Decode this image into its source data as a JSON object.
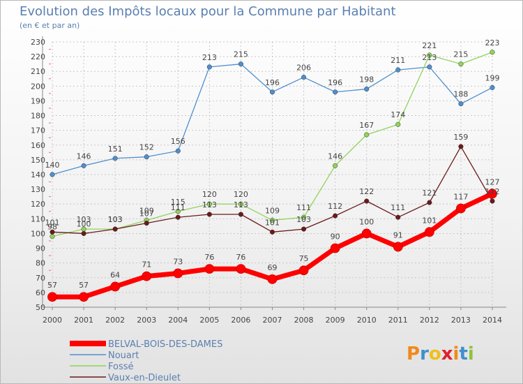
{
  "chart_data": {
    "type": "line",
    "title": "Evolution des Impôts locaux pour la Commune par Habitant",
    "subtitle": "(en € et par an)",
    "xlabel": "",
    "ylabel": "",
    "x": [
      "2000",
      "2001",
      "2002",
      "2003",
      "2004",
      "2005",
      "2006",
      "2007",
      "2008",
      "2009",
      "2010",
      "2011",
      "2012",
      "2013",
      "2014"
    ],
    "ylim": [
      50,
      230
    ],
    "yticks": [
      50,
      60,
      70,
      80,
      90,
      100,
      110,
      120,
      130,
      140,
      150,
      160,
      170,
      180,
      190,
      200,
      210,
      220,
      230
    ],
    "grid": true,
    "legend_position": "bottom-left",
    "series": [
      {
        "name": "Nouart",
        "color": "#4f8fcf",
        "values": [
          140,
          146,
          151,
          152,
          156,
          213,
          215,
          196,
          206,
          196,
          198,
          211,
          213,
          188,
          199
        ]
      },
      {
        "name": "Fossé",
        "color": "#8fd45a",
        "values": [
          98,
          103,
          103,
          109,
          115,
          120,
          120,
          109,
          111,
          146,
          167,
          174,
          221,
          215,
          223
        ]
      },
      {
        "name": "Vaux-en-Dieulet",
        "color": "#6b1a1a",
        "values": [
          101,
          100,
          103,
          107,
          111,
          113,
          113,
          101,
          103,
          112,
          122,
          111,
          121,
          159,
          122
        ]
      },
      {
        "name": "BELVAL-BOIS-DES-DAMES",
        "color": "#ff0000",
        "values": [
          57,
          57,
          64,
          71,
          73,
          76,
          76,
          69,
          75,
          90,
          100,
          91,
          101,
          117,
          127
        ]
      }
    ]
  },
  "logo": {
    "text": "Proxiti"
  }
}
